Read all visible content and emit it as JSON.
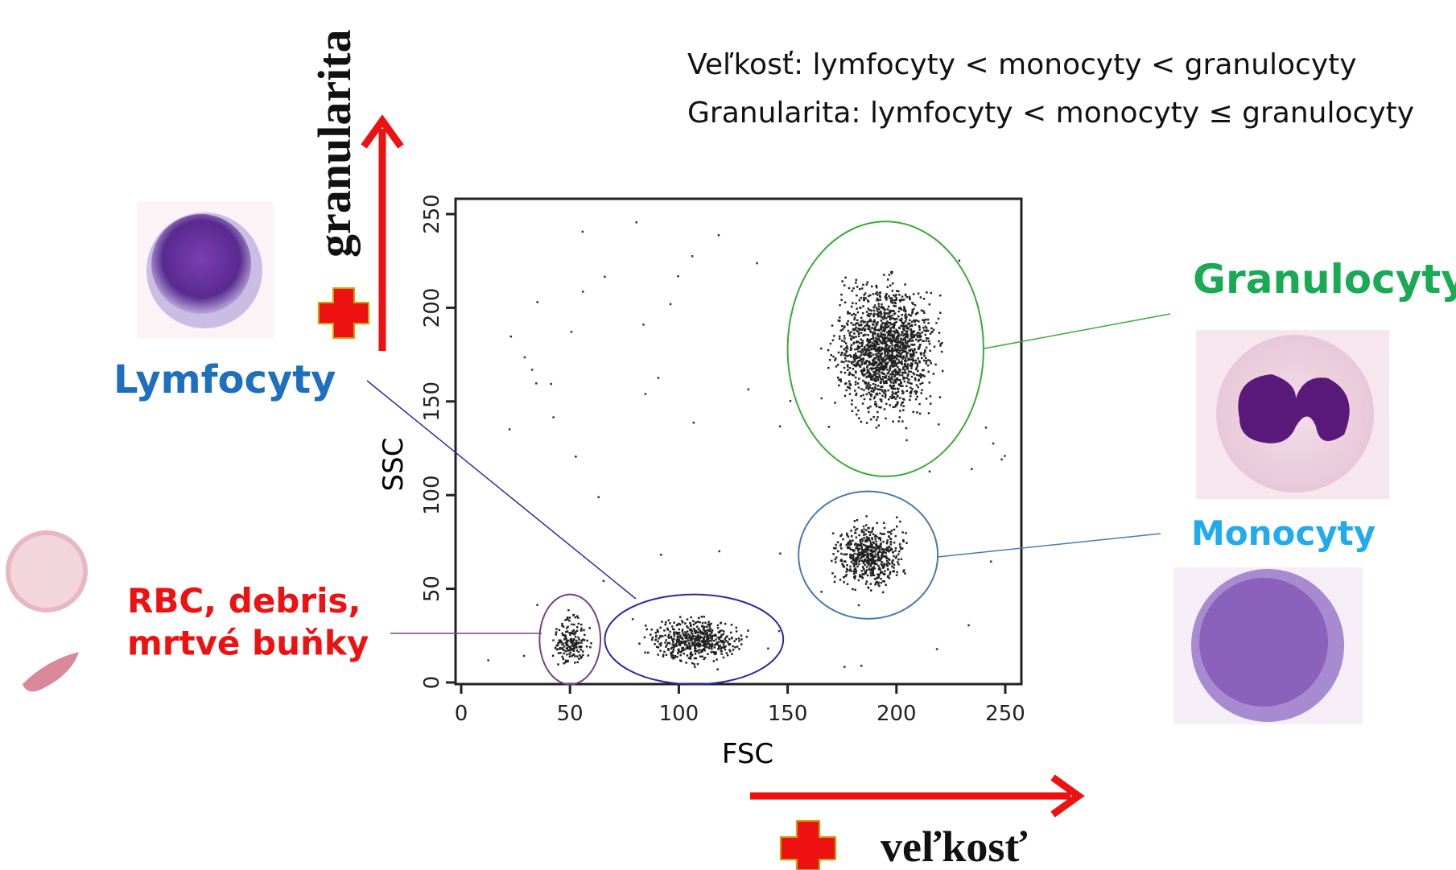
{
  "header": {
    "lines": [
      "Veľkosť: lymfocyty < monocyty < granulocyty",
      "Granularita: lymfocyty < monocyty ≤ granulocyty"
    ]
  },
  "axes": {
    "y_arrow_label": "granularita",
    "x_arrow_label": "veľkosť"
  },
  "plot": {
    "x_label": "FSC",
    "y_label": "SSC",
    "xlim": [
      0,
      250
    ],
    "ylim": [
      0,
      250
    ],
    "xticks": [
      0,
      50,
      100,
      150,
      200,
      250
    ],
    "yticks": [
      0,
      50,
      100,
      150,
      200,
      250
    ]
  },
  "populations": [
    {
      "label": "RBC, debris,\nmrtvé buňky",
      "color": "#ee1111",
      "gate_color": "#7b3f8a",
      "center": [
        50,
        23
      ],
      "radius": [
        14,
        24
      ]
    },
    {
      "label": "Lymfocyty",
      "color": "#1f6fbf",
      "gate_color": "#2a2aa0",
      "center": [
        107,
        23
      ],
      "radius": [
        41,
        24
      ]
    },
    {
      "label": "Monocyty",
      "color": "#22aaee",
      "gate_color": "#4a7ab0",
      "center": [
        187,
        68
      ],
      "radius": [
        32,
        34
      ]
    },
    {
      "label": "Granulocyty",
      "color": "#1aaa55",
      "gate_color": "#3aaa3a",
      "center": [
        195,
        178
      ],
      "radius": [
        45,
        68
      ]
    }
  ]
}
